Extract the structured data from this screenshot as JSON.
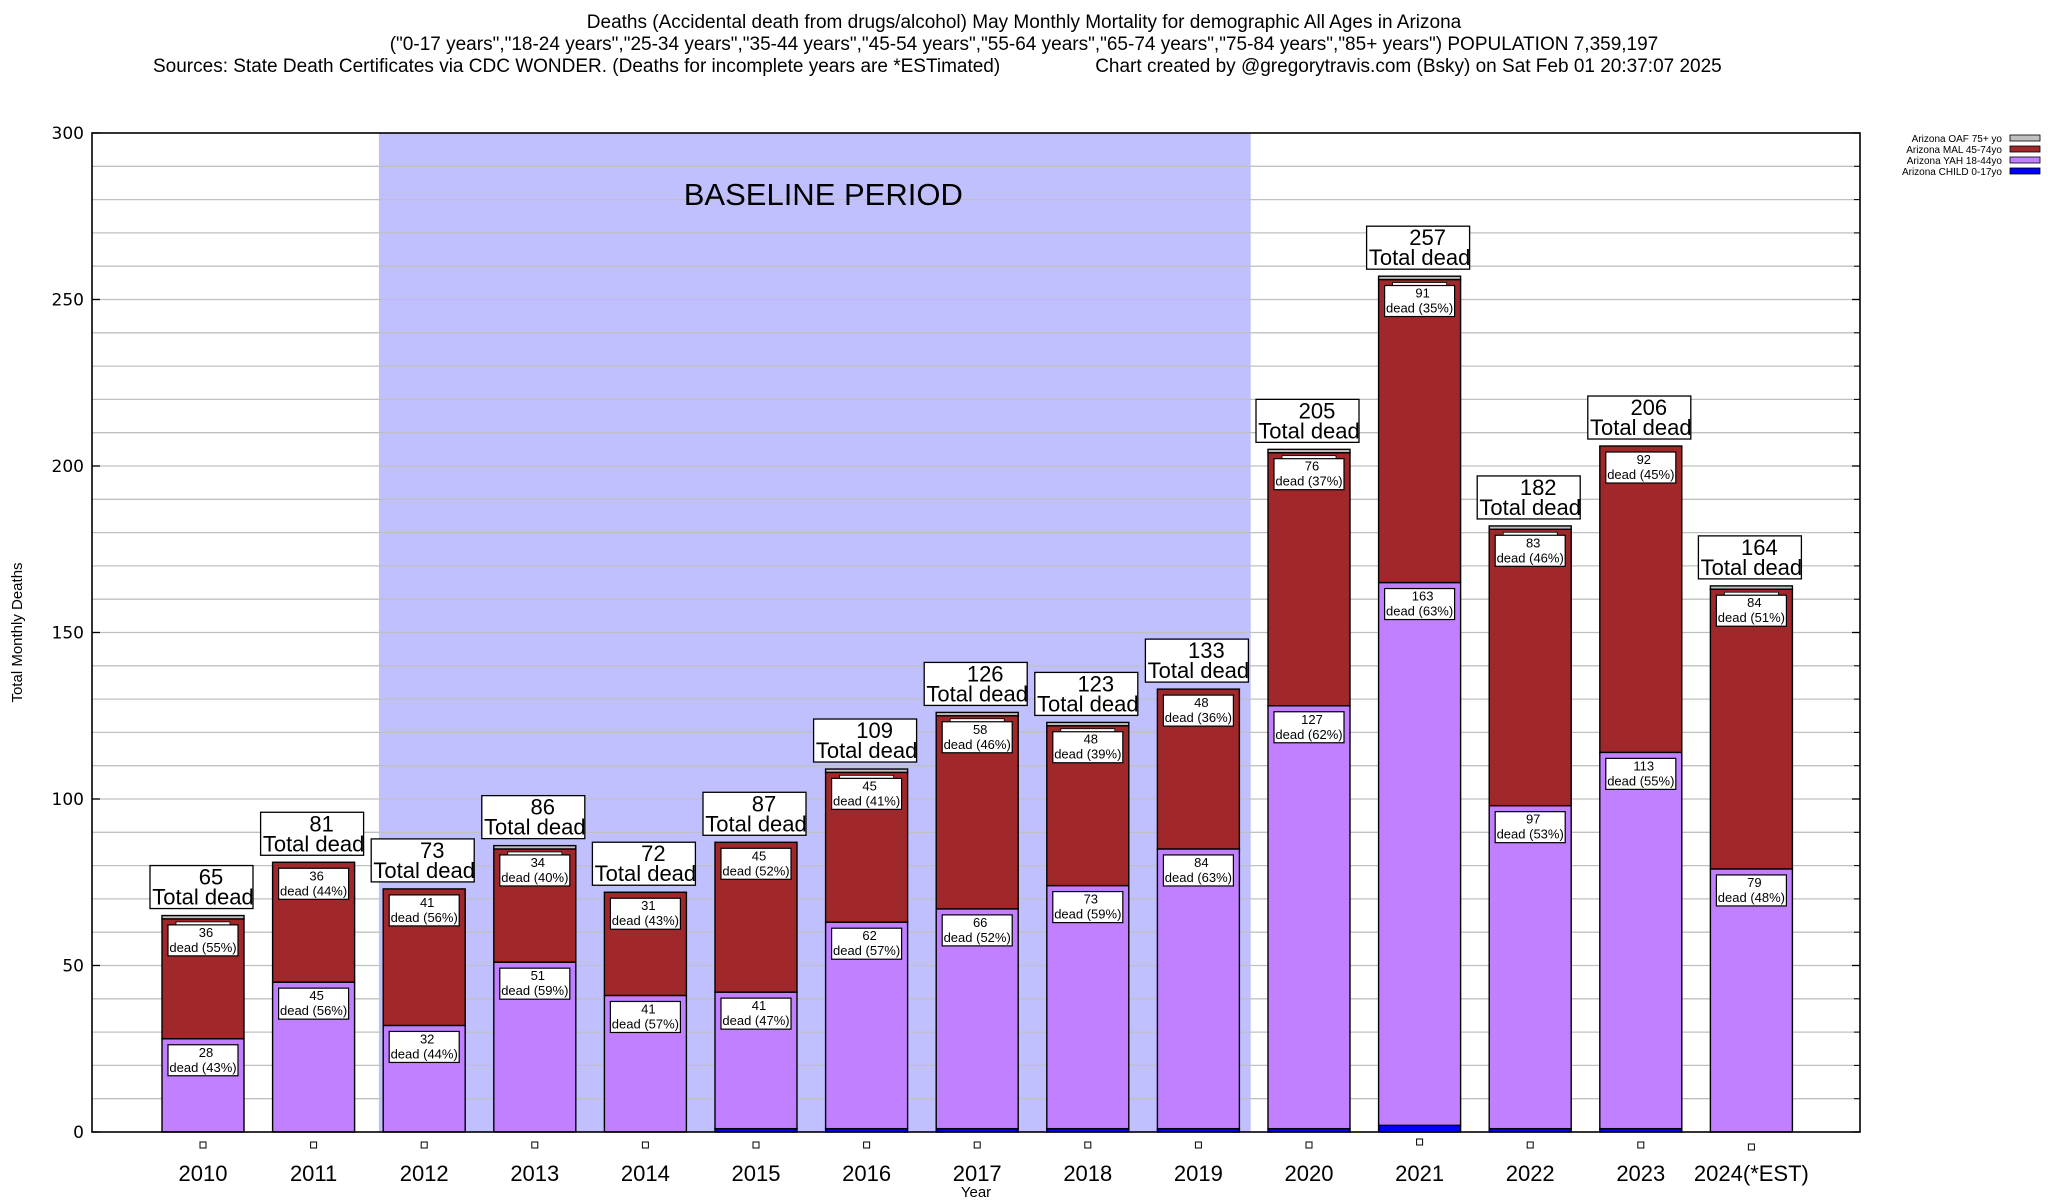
{
  "header": {
    "title_line1": "Deaths (Accidental death from drugs/alcohol) May Monthly Mortality for demographic All Ages in Arizona",
    "title_line2": "(\"0-17 years\",\"18-24 years\",\"25-34 years\",\"35-44 years\",\"45-54 years\",\"55-64 years\",\"65-74 years\",\"75-84 years\",\"85+ years\") POPULATION 7,359,197",
    "sources": "Sources: State Death Certificates via CDC WONDER. (Deaths for incomplete years are *ESTimated)",
    "credit": "Chart created by @gregorytravis.com (Bsky) on Sat Feb 01 20:37:07 2025"
  },
  "chart_data": {
    "type": "bar",
    "stacked": true,
    "title": "Deaths (Accidental death from drugs/alcohol) May Monthly Mortality for demographic All Ages in Arizona",
    "xlabel": "Year",
    "ylabel": "Total Monthly Deaths",
    "ylim": [
      0,
      300
    ],
    "yticks": [
      0,
      50,
      100,
      150,
      200,
      250,
      300
    ],
    "minor_grid_step": 10,
    "grid": true,
    "legend_position": "top-right",
    "categories": [
      "2010",
      "2011",
      "2012",
      "2013",
      "2014",
      "2015",
      "2016",
      "2017",
      "2018",
      "2019",
      "2020",
      "2021",
      "2022",
      "2023",
      "2024(*EST)"
    ],
    "series": [
      {
        "name": "Arizona CHILD 0-17yo",
        "color": "#0000ff",
        "values": [
          0,
          0,
          0,
          0,
          0,
          1,
          1,
          1,
          1,
          1,
          1,
          2,
          1,
          1,
          0
        ]
      },
      {
        "name": "Arizona YAH 18-44yo",
        "color": "#c080ff",
        "values": [
          28,
          45,
          32,
          51,
          41,
          41,
          62,
          66,
          73,
          84,
          127,
          163,
          97,
          113,
          79
        ],
        "labels": [
          "28\ndead (43%)",
          "45\ndead (56%)",
          "32\ndead (44%)",
          "51\ndead (59%)",
          "41\ndead (57%)",
          "41\ndead (47%)",
          "62\ndead (57%)",
          "66\ndead (52%)",
          "73\ndead (59%)",
          "84\ndead (63%)",
          "127\ndead (62%)",
          "163\ndead (63%)",
          "97\ndead (53%)",
          "113\ndead (55%)",
          "79\ndead (48%)"
        ]
      },
      {
        "name": "Arizona MAL 45-74yo",
        "color": "#a0282a",
        "values": [
          36,
          36,
          41,
          34,
          31,
          45,
          45,
          58,
          48,
          48,
          76,
          91,
          83,
          92,
          84
        ],
        "labels": [
          "36\ndead (55%)",
          "36\ndead (44%)",
          "41\ndead (56%)",
          "34\ndead (40%)",
          "31\ndead (43%)",
          "45\ndead (52%)",
          "45\ndead (41%)",
          "58\ndead (46%)",
          "48\ndead (39%)",
          "48\ndead (36%)",
          "76\ndead (37%)",
          "91\ndead (35%)",
          "83\ndead (46%)",
          "92\ndead (45%)",
          "84\ndead (51%)"
        ]
      },
      {
        "name": "Arizona OAF 75+ yo",
        "color": "#c0c0c0",
        "values": [
          1,
          0,
          0,
          1,
          0,
          0,
          1,
          1,
          1,
          0,
          1,
          1,
          1,
          0,
          1
        ]
      }
    ],
    "totals": [
      65,
      81,
      73,
      86,
      72,
      87,
      109,
      126,
      123,
      133,
      205,
      257,
      182,
      206,
      164
    ],
    "total_label_suffix": "Total dead",
    "annotations": [
      {
        "text": "BASELINE PERIOD",
        "x_range": [
          "2012",
          "2019"
        ],
        "color": "#c0c0ff"
      }
    ],
    "legend_order": [
      "Arizona OAF 75+ yo",
      "Arizona MAL 45-74yo",
      "Arizona YAH 18-44yo",
      "Arizona CHILD 0-17yo"
    ]
  }
}
